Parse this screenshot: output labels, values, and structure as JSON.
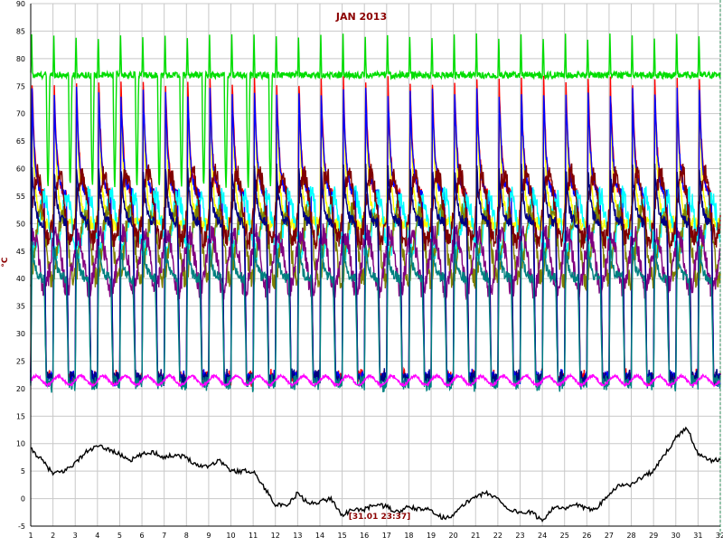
{
  "chart_data": {
    "type": "line",
    "title": "JAN 2013",
    "ylabel": "°C",
    "timestamp_label": "[31.01 23:37]",
    "xlim": [
      1,
      32
    ],
    "ylim": [
      -5,
      90
    ],
    "x_ticks": [
      "1",
      "2",
      "3",
      "4",
      "5",
      "6",
      "7",
      "8",
      "9",
      "10",
      "11",
      "12",
      "13",
      "14",
      "15",
      "16",
      "17",
      "18",
      "19",
      "20",
      "21",
      "22",
      "23",
      "24",
      "25",
      "26",
      "27",
      "28",
      "29",
      "30",
      "31",
      "32"
    ],
    "y_ticks": [
      "-5",
      "0",
      "5",
      "10",
      "15",
      "20",
      "25",
      "30",
      "35",
      "40",
      "45",
      "50",
      "55",
      "60",
      "65",
      "70",
      "75",
      "80",
      "85",
      "90"
    ],
    "grid": true,
    "colors": {
      "grid": "#c8c8c8",
      "cursor": "#2e8b57",
      "title": "#8b0000"
    },
    "series": [
      {
        "color": "#00dd00",
        "style": "boiler",
        "base": 77,
        "peak": 84,
        "cycle": true,
        "rise": 1
      },
      {
        "color": "#ffff00",
        "style": "cycle",
        "base": 50,
        "peak": 74,
        "low": 50
      },
      {
        "color": "#ff0000",
        "style": "cycle",
        "base": 55,
        "peak": 76,
        "low": 22
      },
      {
        "color": "#0000ff",
        "style": "cycle",
        "base": 55,
        "peak": 74,
        "low": 22
      },
      {
        "color": "#00ffff",
        "style": "band",
        "base": 50,
        "amp": 5
      },
      {
        "color": "#808000",
        "style": "band",
        "base": 46,
        "amp": 6
      },
      {
        "color": "#800000",
        "style": "band",
        "base": 53,
        "amp": 6
      },
      {
        "color": "#800080",
        "style": "band",
        "base": 43,
        "amp": 5
      },
      {
        "color": "#000080",
        "style": "cycle",
        "base": 50,
        "peak": 60,
        "low": 22
      },
      {
        "color": "#008080",
        "style": "cycle",
        "base": 40,
        "peak": 46,
        "low": 21
      },
      {
        "color": "#ff00ff",
        "style": "room",
        "base": 21.5,
        "amp": 0.8
      }
    ],
    "outdoor_series": {
      "color": "#000000",
      "x": [
        1,
        1.5,
        2,
        2.5,
        3,
        3.5,
        4,
        4.5,
        5,
        5.5,
        6,
        6.5,
        7,
        7.5,
        8,
        8.5,
        9,
        9.5,
        10,
        10.5,
        11,
        11.5,
        12,
        12.5,
        13,
        13.5,
        14,
        14.5,
        15,
        15.5,
        16,
        16.5,
        17,
        17.5,
        18,
        18.5,
        19,
        19.5,
        20,
        20.5,
        21,
        21.5,
        22,
        22.5,
        23,
        23.5,
        24,
        24.5,
        25,
        25.5,
        26,
        26.5,
        27,
        27.5,
        28,
        28.5,
        29,
        29.5,
        30,
        30.5,
        31,
        31.5,
        32
      ],
      "y": [
        9,
        7,
        4.5,
        5,
        6.5,
        8.5,
        9.5,
        9,
        8,
        7,
        8,
        8.5,
        7.5,
        8,
        7.5,
        6,
        6,
        7,
        5,
        5,
        5,
        2,
        -1,
        -1.5,
        1,
        -1,
        -0.5,
        0,
        -3,
        -2,
        -2,
        -1,
        -1.5,
        -2.5,
        -1.5,
        -2,
        -2,
        -3.5,
        -3,
        -1,
        0.5,
        1,
        0,
        -2,
        -2.5,
        -2.5,
        -4,
        -1.5,
        -2,
        -1,
        -2,
        -1.5,
        1,
        2.5,
        2.5,
        4,
        5,
        8,
        11,
        13,
        8,
        7,
        7
      ]
    }
  }
}
